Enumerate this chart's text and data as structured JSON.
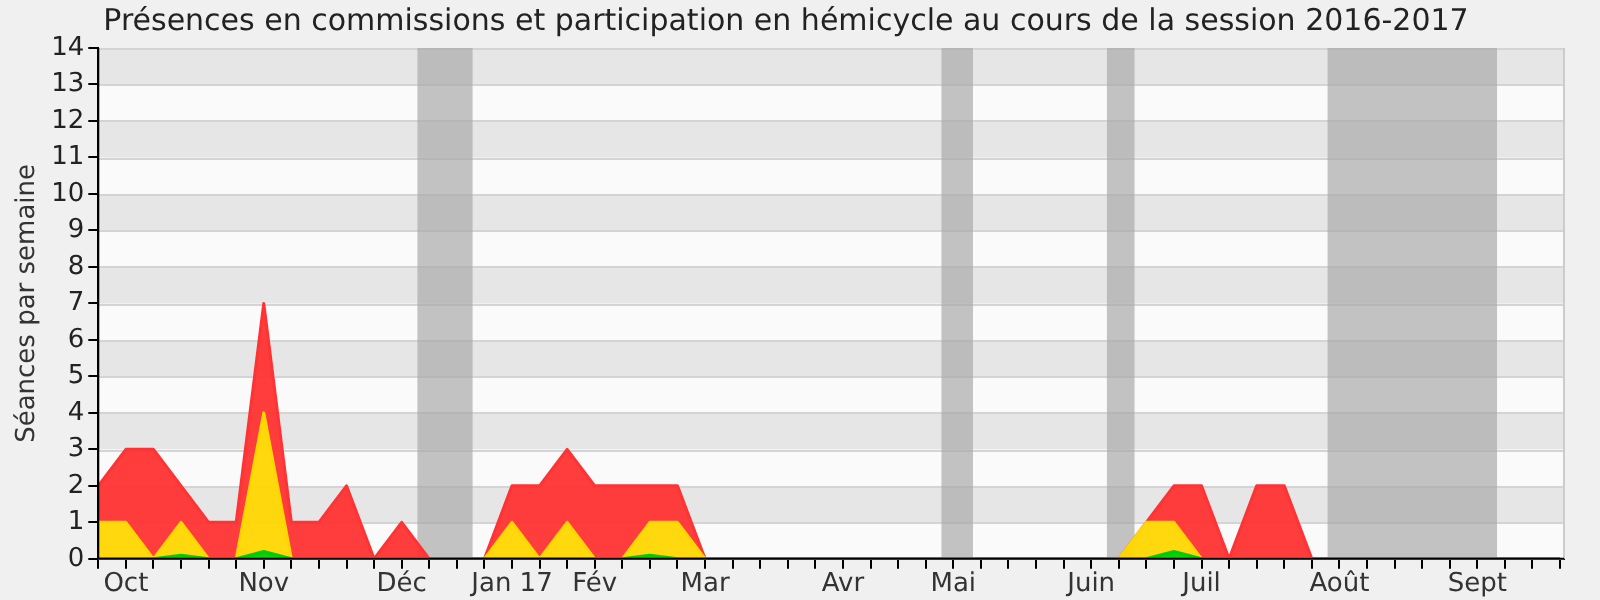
{
  "chart_data": {
    "type": "area",
    "stacked": true,
    "title": "Présences en commissions et participation en hémicycle au cours de la session 2016-2017",
    "ylabel": "Séances par semaine",
    "x": [
      "2016-09-28",
      "2016-10-05",
      "2016-10-12",
      "2016-10-19",
      "2016-10-26",
      "2016-11-02",
      "2016-11-09",
      "2016-11-16",
      "2016-11-23",
      "2016-11-30",
      "2016-12-07",
      "2016-12-14",
      "2016-12-21",
      "2016-12-28",
      "2017-01-04",
      "2017-01-11",
      "2017-01-18",
      "2017-01-25",
      "2017-02-01",
      "2017-02-08",
      "2017-02-15",
      "2017-02-22",
      "2017-03-01",
      "2017-03-08",
      "2017-03-15",
      "2017-03-22",
      "2017-03-29",
      "2017-04-05",
      "2017-04-12",
      "2017-04-19",
      "2017-04-26",
      "2017-05-03",
      "2017-05-10",
      "2017-05-17",
      "2017-05-24",
      "2017-05-31",
      "2017-06-07",
      "2017-06-14",
      "2017-06-21",
      "2017-06-28",
      "2017-07-05",
      "2017-07-12",
      "2017-07-19",
      "2017-07-26",
      "2017-08-02",
      "2017-08-09",
      "2017-08-16",
      "2017-08-23",
      "2017-08-30",
      "2017-09-06",
      "2017-09-13",
      "2017-09-20",
      "2017-09-27",
      "2017-10-04"
    ],
    "series": [
      {
        "color": "#00cc00",
        "values": [
          0,
          0,
          0,
          0.1,
          0,
          0,
          0.2,
          0,
          0,
          0,
          0,
          0,
          0,
          0,
          0,
          0,
          0,
          0,
          0,
          0,
          0.1,
          0,
          0,
          0,
          0,
          0,
          0,
          0,
          0,
          0,
          0,
          0,
          0,
          0,
          0,
          0,
          0,
          0,
          0,
          0.2,
          0,
          0,
          0,
          0,
          0,
          0,
          0,
          0,
          0,
          0,
          0,
          0,
          0,
          0
        ]
      },
      {
        "color": "#ffd700",
        "values": [
          1,
          1,
          0,
          0.9,
          0,
          0,
          3.8,
          0,
          0,
          0,
          0,
          0,
          0,
          0,
          0,
          1,
          0,
          1,
          0,
          0,
          0.9,
          1,
          0,
          0,
          0,
          0,
          0,
          0,
          0,
          0,
          0,
          0,
          0,
          0,
          0,
          0,
          0,
          0,
          1,
          0.8,
          0,
          0,
          0,
          0,
          0,
          0,
          0,
          0,
          0,
          0,
          0,
          0,
          0,
          0
        ]
      },
      {
        "color": "#ff3333",
        "values": [
          1,
          2,
          3,
          1,
          1,
          1,
          3,
          1,
          1,
          2,
          0,
          1,
          0,
          0,
          0,
          1,
          2,
          2,
          2,
          2,
          1,
          1,
          0,
          0,
          0,
          0,
          0,
          0,
          0,
          0,
          0,
          0,
          0,
          0,
          0,
          0,
          0,
          0,
          0,
          1,
          2,
          0,
          2,
          2,
          0,
          0,
          0,
          0,
          0,
          0,
          0,
          0,
          0,
          0
        ]
      }
    ],
    "xlim": [
      "2016-09-28",
      "2017-10-05"
    ],
    "xticks": [
      {
        "value": "2016-09-28",
        "label": null
      },
      {
        "value": "2016-10-05",
        "label": "Oct"
      },
      {
        "value": "2016-10-12",
        "label": null
      },
      {
        "value": "2016-10-19",
        "label": null
      },
      {
        "value": "2016-10-26",
        "label": null
      },
      {
        "value": "2016-11-02",
        "label": null
      },
      {
        "value": "2016-11-09",
        "label": "Nov"
      },
      {
        "value": "2016-11-16",
        "label": null
      },
      {
        "value": "2016-11-23",
        "label": null
      },
      {
        "value": "2016-11-30",
        "label": null
      },
      {
        "value": "2016-12-07",
        "label": null
      },
      {
        "value": "2016-12-14",
        "label": "Déc"
      },
      {
        "value": "2016-12-21",
        "label": null
      },
      {
        "value": "2016-12-28",
        "label": null
      },
      {
        "value": "2017-01-04",
        "label": null
      },
      {
        "value": "2017-01-11",
        "label": "Jan 17"
      },
      {
        "value": "2017-01-18",
        "label": null
      },
      {
        "value": "2017-01-25",
        "label": null
      },
      {
        "value": "2017-02-01",
        "label": "Fév"
      },
      {
        "value": "2017-02-08",
        "label": null
      },
      {
        "value": "2017-02-15",
        "label": null
      },
      {
        "value": "2017-02-22",
        "label": null
      },
      {
        "value": "2017-03-01",
        "label": "Mar"
      },
      {
        "value": "2017-03-08",
        "label": null
      },
      {
        "value": "2017-03-15",
        "label": null
      },
      {
        "value": "2017-03-22",
        "label": null
      },
      {
        "value": "2017-03-29",
        "label": null
      },
      {
        "value": "2017-04-05",
        "label": "Avr"
      },
      {
        "value": "2017-04-12",
        "label": null
      },
      {
        "value": "2017-04-19",
        "label": null
      },
      {
        "value": "2017-04-26",
        "label": null
      },
      {
        "value": "2017-05-03",
        "label": "Mai"
      },
      {
        "value": "2017-05-10",
        "label": null
      },
      {
        "value": "2017-05-17",
        "label": null
      },
      {
        "value": "2017-05-24",
        "label": null
      },
      {
        "value": "2017-05-31",
        "label": null
      },
      {
        "value": "2017-06-07",
        "label": "Juin"
      },
      {
        "value": "2017-06-14",
        "label": null
      },
      {
        "value": "2017-06-21",
        "label": null
      },
      {
        "value": "2017-06-28",
        "label": null
      },
      {
        "value": "2017-07-05",
        "label": "Juil"
      },
      {
        "value": "2017-07-12",
        "label": null
      },
      {
        "value": "2017-07-19",
        "label": null
      },
      {
        "value": "2017-07-26",
        "label": null
      },
      {
        "value": "2017-08-02",
        "label": null
      },
      {
        "value": "2017-08-09",
        "label": "Août"
      },
      {
        "value": "2017-08-16",
        "label": null
      },
      {
        "value": "2017-08-23",
        "label": null
      },
      {
        "value": "2017-08-30",
        "label": null
      },
      {
        "value": "2017-09-06",
        "label": null
      },
      {
        "value": "2017-09-13",
        "label": "Sept"
      },
      {
        "value": "2017-09-20",
        "label": null
      },
      {
        "value": "2017-09-27",
        "label": null
      },
      {
        "value": "2017-10-04",
        "label": null
      }
    ],
    "ylim": [
      0,
      14
    ],
    "yticks": [
      0,
      1,
      2,
      3,
      4,
      5,
      6,
      7,
      8,
      9,
      10,
      11,
      12,
      13,
      14
    ],
    "bands": [
      {
        "axis": "x",
        "from": "2016-12-18",
        "to": "2017-01-01",
        "color": "#aaaaaa"
      },
      {
        "axis": "x",
        "from": "2017-04-30",
        "to": "2017-05-08",
        "color": "#aaaaaa"
      },
      {
        "axis": "x",
        "from": "2017-06-11",
        "to": "2017-06-18",
        "color": "#aaaaaa"
      },
      {
        "axis": "x",
        "from": "2017-08-06",
        "to": "2017-09-18",
        "color": "#aaaaaa"
      }
    ],
    "grid": "y",
    "legend": false,
    "marker": "none",
    "line_style": "solid"
  }
}
